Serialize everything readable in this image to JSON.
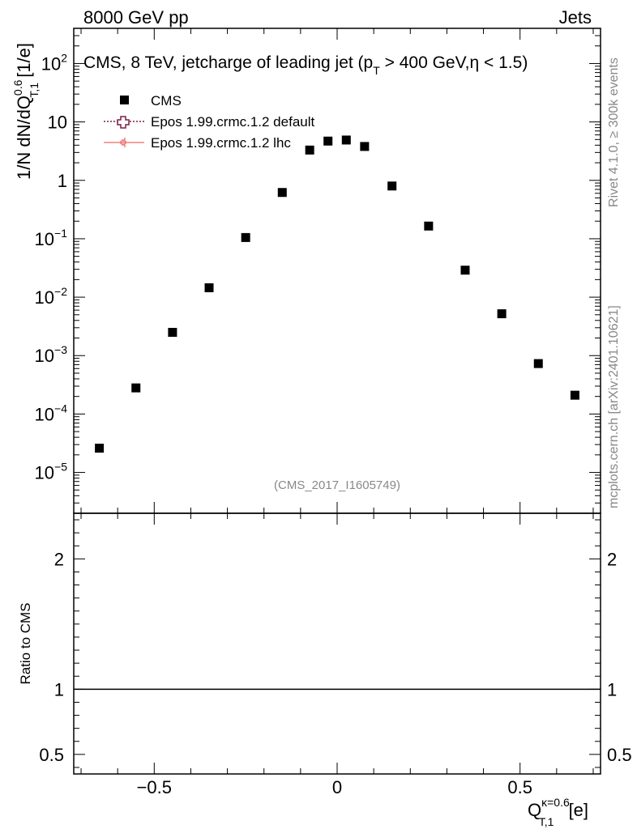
{
  "header": {
    "left": "8000 GeV pp",
    "right": "Jets"
  },
  "side_labels": {
    "rivet": "Rivet 4.1.0, ≥ 300k events",
    "mcplots": "mcplots.cern.ch [arXiv:2401.10621]"
  },
  "watermark": "(CMS_2017_I1605749)",
  "colors": {
    "data": "#000000",
    "epos_default": "#7a1f45",
    "epos_lhc": "#f08080"
  },
  "chart_data": [
    {
      "type": "scatter",
      "title": "CMS, 8 TeV, jetcharge of leading jet (p",
      "title_sub": "T",
      "title_rest": " > 400 GeV,η < 1.5)",
      "ylabel": {
        "main": "1/N dN/dQ",
        "sup": "0.6",
        "sub": "T,1",
        "unit": " [1/e]"
      },
      "xlim": [
        -0.72,
        0.72
      ],
      "ylim": [
        2e-06,
        400
      ],
      "yscale": "log",
      "legend": [
        {
          "label": "CMS",
          "marker": "square"
        },
        {
          "label": "Epos 1.99.crmc.1.2 default",
          "marker": "open-cross"
        },
        {
          "label": "Epos 1.99.crmc.1.2 lhc",
          "marker": "small-cross"
        }
      ],
      "series": [
        {
          "name": "CMS",
          "x": [
            -0.65,
            -0.55,
            -0.45,
            -0.35,
            -0.25,
            -0.15,
            -0.075,
            -0.025,
            0.025,
            0.075,
            0.15,
            0.25,
            0.35,
            0.45,
            0.55,
            0.65
          ],
          "y": [
            2.6e-05,
            0.00028,
            0.0025,
            0.0145,
            0.105,
            0.62,
            3.3,
            4.7,
            4.9,
            3.8,
            0.8,
            0.165,
            0.029,
            0.0052,
            0.00073,
            0.00021
          ]
        }
      ],
      "y_ticks": [
        {
          "v": 100,
          "base": "10",
          "exp": "2"
        },
        {
          "v": 10,
          "base": "10",
          "exp": ""
        },
        {
          "v": 1,
          "base": "1",
          "exp": ""
        },
        {
          "v": 0.1,
          "base": "10",
          "exp": "−1"
        },
        {
          "v": 0.01,
          "base": "10",
          "exp": "−2"
        },
        {
          "v": 0.001,
          "base": "10",
          "exp": "−3"
        },
        {
          "v": 0.0001,
          "base": "10",
          "exp": "−4"
        },
        {
          "v": 1e-05,
          "base": "10",
          "exp": "−5"
        }
      ]
    },
    {
      "type": "line",
      "ylabel": "Ratio to CMS",
      "xlabel": {
        "main": "Q",
        "sup": "κ=0.6",
        "sub": "T,1",
        "unit": " [e]"
      },
      "xlim": [
        -0.72,
        0.72
      ],
      "ylim": [
        0.35,
        2.35
      ],
      "x_ticks": [
        {
          "v": -0.5,
          "label": "−0.5"
        },
        {
          "v": 0,
          "label": "0"
        },
        {
          "v": 0.5,
          "label": "0.5"
        }
      ],
      "y_ticks": [
        {
          "v": 2,
          "label": "2"
        },
        {
          "v": 1,
          "label": "1"
        },
        {
          "v": 0.5,
          "label": "0.5"
        }
      ],
      "reference_line": 1
    }
  ]
}
